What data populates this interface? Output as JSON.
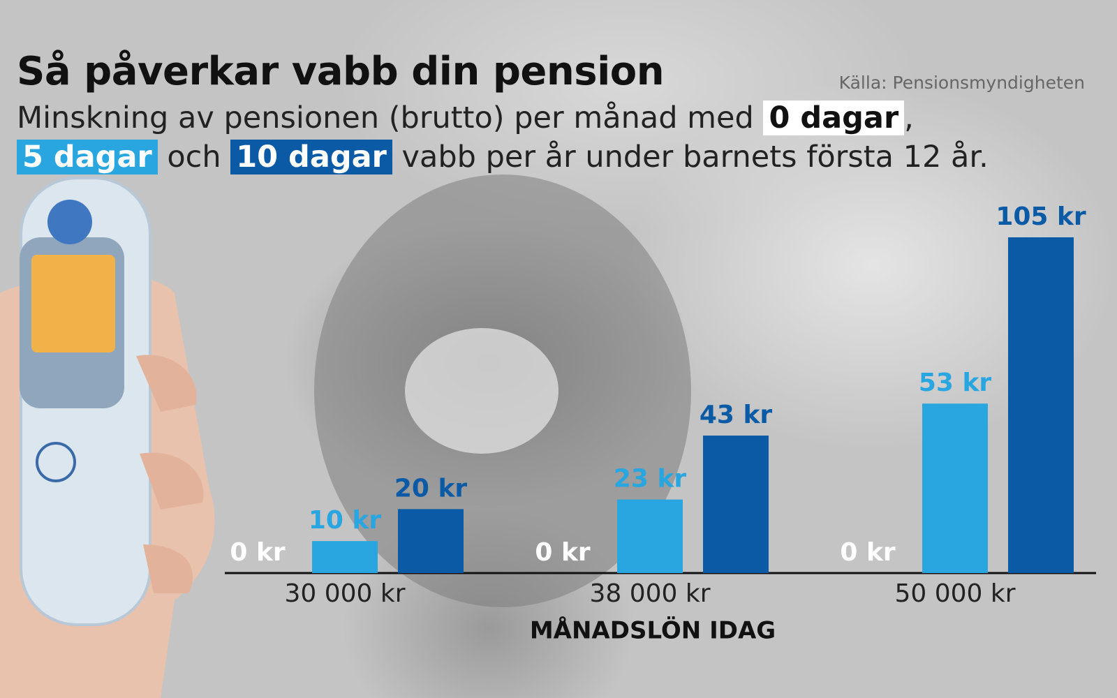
{
  "chart_data": {
    "type": "bar",
    "title": "Så påverkar vabb din pension",
    "source": "Källa: Pensionsmyndigheten",
    "subtitle": [
      "Minskning av pensionen (brutto) per månad med",
      ",",
      "och",
      "vabb per år under barnets första 12 år."
    ],
    "x_label": "MÅNADSLÖN IDAG",
    "categories": [
      "30 000 kr",
      "38 000 kr",
      "50 000 kr"
    ],
    "series": [
      {
        "name": "0 dagar",
        "color": "#ffffff",
        "values": [
          0,
          0,
          0
        ],
        "value_labels": [
          "0 kr",
          "0 kr",
          "0 kr"
        ]
      },
      {
        "name": "5 dagar",
        "color": "#29a6e0",
        "values": [
          10,
          23,
          53
        ],
        "value_labels": [
          "10 kr",
          "23 kr",
          "53 kr"
        ]
      },
      {
        "name": "10 dagar",
        "color": "#0b5aa5",
        "values": [
          20,
          43,
          105
        ],
        "value_labels": [
          "20 kr",
          "43 kr",
          "105 kr"
        ]
      }
    ]
  }
}
